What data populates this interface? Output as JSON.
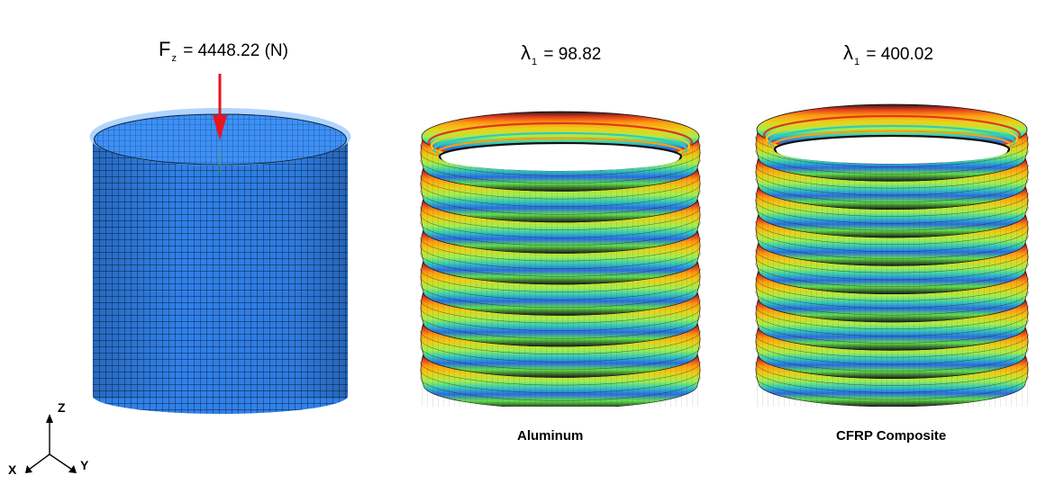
{
  "panels": {
    "load": {
      "symbol": "F",
      "subscript": "z",
      "value_text": "= 4448.22 (N)",
      "colors": {
        "mesh": "#2f7ee6",
        "mesh_light": "#3c8ef5",
        "grid": "#0a1f3a",
        "arrow": "#e8141e"
      }
    },
    "aluminum": {
      "symbol": "λ",
      "subscript": "1",
      "value_text": "= 98.82",
      "caption": "Aluminum",
      "rings": 8
    },
    "cfrp": {
      "symbol": "λ",
      "subscript": "1",
      "value_text": "= 400.02",
      "caption": "CFRP Composite",
      "rings": 9
    }
  },
  "axes": {
    "x": "X",
    "y": "Y",
    "z": "Z"
  },
  "colors": {
    "band_palette": [
      "#e8d21a",
      "#ff9c12",
      "#e0371c",
      "#1f1f1f",
      "#35c9b8",
      "#2b6be6",
      "#62e04a",
      "#9ff050"
    ]
  }
}
